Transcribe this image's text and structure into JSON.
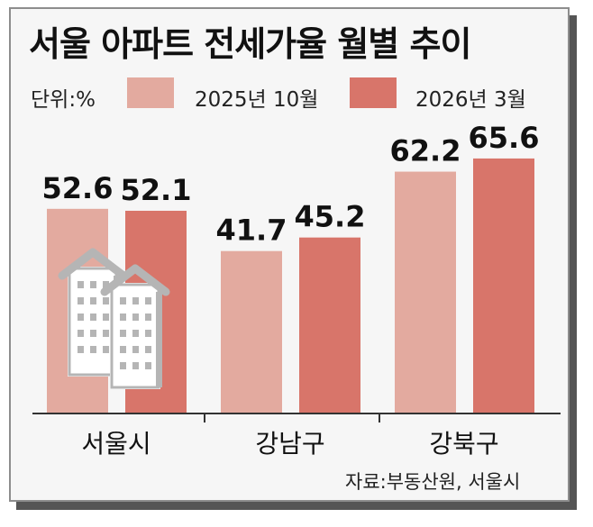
{
  "chart_data": {
    "type": "bar",
    "title": "서울 아파트 전세가율 월별 추이",
    "unit_label": "단위:%",
    "categories": [
      "서울시",
      "강남구",
      "강북구"
    ],
    "series": [
      {
        "name": "2025년 10월",
        "values": [
          52.6,
          41.7,
          62.2
        ],
        "color": "#e3aa9f"
      },
      {
        "name": "2026년 3월",
        "values": [
          52.1,
          45.2,
          65.6
        ],
        "color": "#d8756a"
      }
    ],
    "value_labels": [
      [
        "52.6",
        "41.7",
        "62.2"
      ],
      [
        "52.1",
        "45.2",
        "65.6"
      ]
    ],
    "ylim": [
      0,
      70
    ],
    "grid": false,
    "legend": "top",
    "source": "자료:부동산원, 서울시"
  },
  "decoration": {
    "icon": "apartment-building-icon",
    "icon_color": "#b5b5b5"
  },
  "colors": {
    "background": "#f6f6f6",
    "border": "#8d8d8d",
    "shadow": "#555555",
    "axis": "#333333"
  }
}
